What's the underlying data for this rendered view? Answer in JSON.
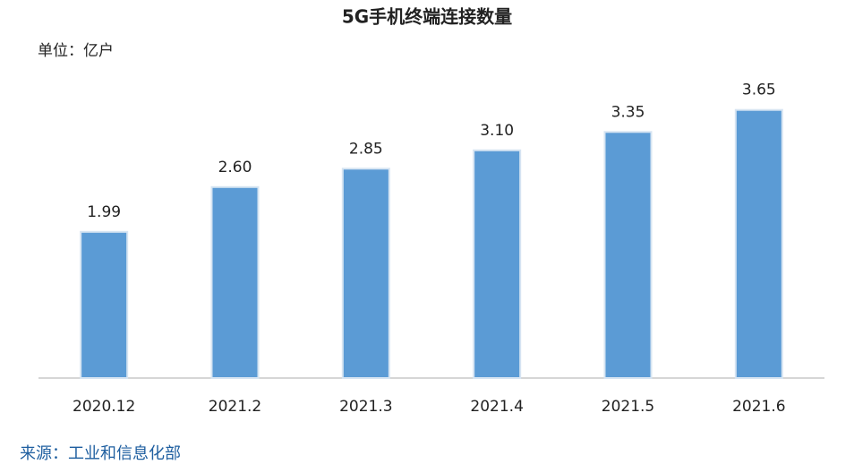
{
  "chart_data": {
    "type": "bar",
    "title": "5G手机终端连接数量",
    "unit": "单位：亿户",
    "source": "来源：工业和信息化部",
    "categories": [
      "2020.12",
      "2021.2",
      "2021.3",
      "2021.4",
      "2021.5",
      "2021.6"
    ],
    "values": [
      1.99,
      2.6,
      2.85,
      3.1,
      3.35,
      3.65
    ],
    "value_labels": [
      "1.99",
      "2.60",
      "2.85",
      "3.10",
      "3.35",
      "3.65"
    ],
    "color": "#5b9bd5"
  }
}
